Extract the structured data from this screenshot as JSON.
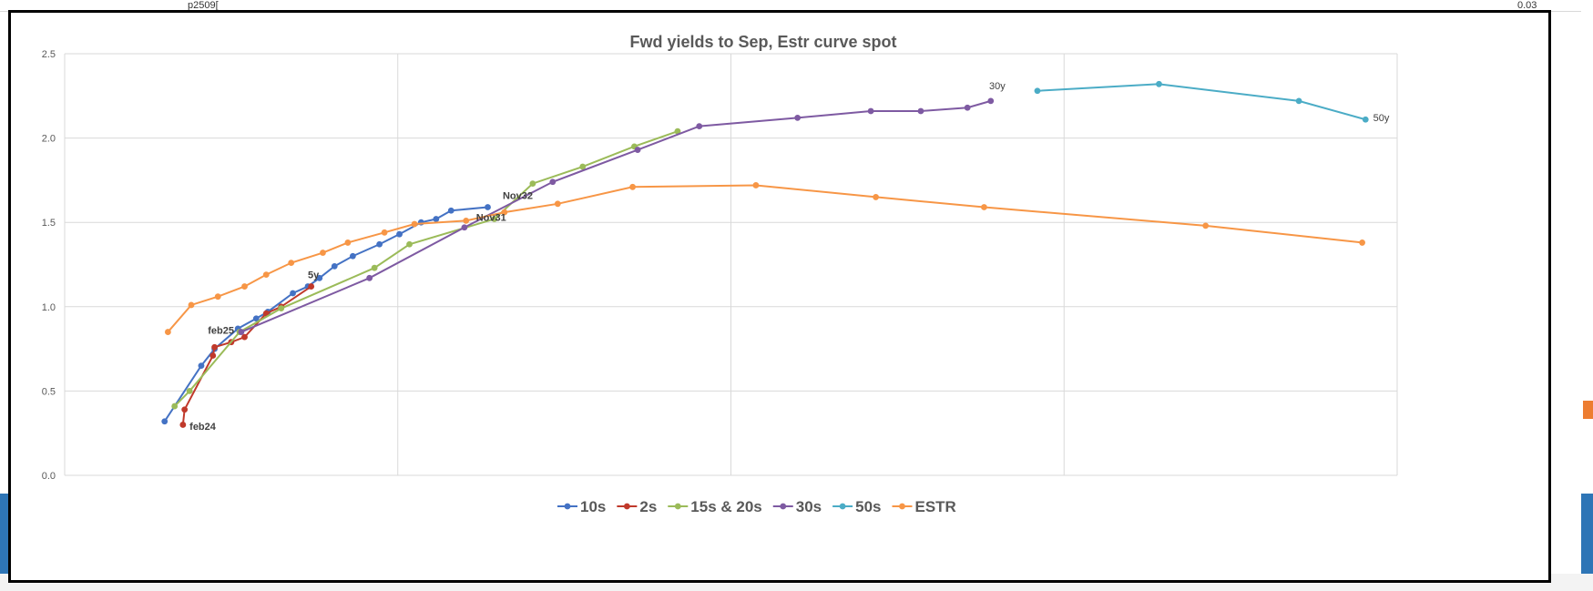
{
  "sheet": {
    "top_left_text": "p2509[",
    "top_right_text": "0.03"
  },
  "chart_data": {
    "type": "scatter",
    "title": "Fwd yields to Sep, Estr curve spot",
    "xlim": [
      -3,
      37
    ],
    "ylim": [
      0,
      2.5
    ],
    "y_ticks": [
      "0.0",
      "0.5",
      "1.0",
      "1.5",
      "2.0",
      "2.5"
    ],
    "grid": true,
    "legend_position": "bottom",
    "series": [
      {
        "name": "10s",
        "color": "#4472c4",
        "points": [
          [
            0,
            0.32
          ],
          [
            1.1,
            0.65
          ],
          [
            1.5,
            0.75
          ],
          [
            2.2,
            0.87
          ],
          [
            2.75,
            0.93
          ],
          [
            3.1,
            0.97
          ],
          [
            3.85,
            1.08
          ],
          [
            4.3,
            1.12
          ],
          [
            4.65,
            1.17
          ],
          [
            5.1,
            1.24
          ],
          [
            5.65,
            1.3
          ],
          [
            6.45,
            1.37
          ],
          [
            7.05,
            1.43
          ],
          [
            7.7,
            1.5
          ],
          [
            8.15,
            1.52
          ],
          [
            8.6,
            1.57
          ],
          [
            9.7,
            1.59
          ]
        ]
      },
      {
        "name": "2s",
        "color": "#c0392b",
        "points": [
          [
            0.55,
            0.3
          ],
          [
            0.6,
            0.39
          ],
          [
            1.45,
            0.71
          ],
          [
            1.5,
            0.76
          ],
          [
            2,
            0.79
          ],
          [
            2.4,
            0.82
          ],
          [
            3.05,
            0.96
          ],
          [
            3.5,
            1.0
          ],
          [
            4.4,
            1.12
          ]
        ]
      },
      {
        "name": "15s & 20s",
        "color": "#9bbb59",
        "points": [
          [
            0.3,
            0.41
          ],
          [
            0.75,
            0.5
          ],
          [
            2.25,
            0.85
          ],
          [
            3.5,
            0.99
          ],
          [
            6.3,
            1.23
          ],
          [
            7.35,
            1.37
          ],
          [
            9.9,
            1.52
          ],
          [
            11.05,
            1.73
          ],
          [
            12.55,
            1.83
          ],
          [
            14.1,
            1.95
          ],
          [
            15.4,
            2.04
          ]
        ]
      },
      {
        "name": "30s",
        "color": "#7e5aa2",
        "points": [
          [
            2.3,
            0.85
          ],
          [
            6.15,
            1.17
          ],
          [
            9,
            1.47
          ],
          [
            11.65,
            1.74
          ],
          [
            14.2,
            1.93
          ],
          [
            16.05,
            2.07
          ],
          [
            19,
            2.12
          ],
          [
            21.2,
            2.16
          ],
          [
            22.7,
            2.16
          ],
          [
            24.1,
            2.18
          ],
          [
            24.8,
            2.22
          ]
        ]
      },
      {
        "name": "50s",
        "color": "#4bacc6",
        "points": [
          [
            26.2,
            2.28
          ],
          [
            29.85,
            2.32
          ],
          [
            34.05,
            2.22
          ],
          [
            36.05,
            2.11
          ]
        ]
      },
      {
        "name": "ESTR",
        "color": "#f79646",
        "points": [
          [
            0.1,
            0.85
          ],
          [
            0.8,
            1.01
          ],
          [
            1.6,
            1.06
          ],
          [
            2.4,
            1.12
          ],
          [
            3.05,
            1.19
          ],
          [
            3.8,
            1.26
          ],
          [
            4.75,
            1.32
          ],
          [
            5.5,
            1.38
          ],
          [
            6.6,
            1.44
          ],
          [
            7.5,
            1.49
          ],
          [
            9.05,
            1.51
          ],
          [
            10.2,
            1.56
          ],
          [
            11.8,
            1.61
          ],
          [
            14.05,
            1.71
          ],
          [
            17.75,
            1.72
          ],
          [
            21.35,
            1.65
          ],
          [
            24.6,
            1.59
          ],
          [
            31.25,
            1.48
          ],
          [
            35.95,
            1.38
          ]
        ]
      }
    ],
    "annotations": [
      {
        "text": "Nov32",
        "x": 10.15,
        "y": 1.64
      },
      {
        "text": "Nov31",
        "x": 9.35,
        "y": 1.51
      },
      {
        "text": "5y",
        "x": 4.3,
        "y": 1.17
      },
      {
        "text": "feb25",
        "x": 1.3,
        "y": 0.84
      },
      {
        "text": "feb24",
        "x": 0.75,
        "y": 0.27
      },
      {
        "text": "30y",
        "x": 24.75,
        "y": 2.29
      },
      {
        "text": "50y",
        "x": 36.28,
        "y": 2.1
      }
    ]
  }
}
